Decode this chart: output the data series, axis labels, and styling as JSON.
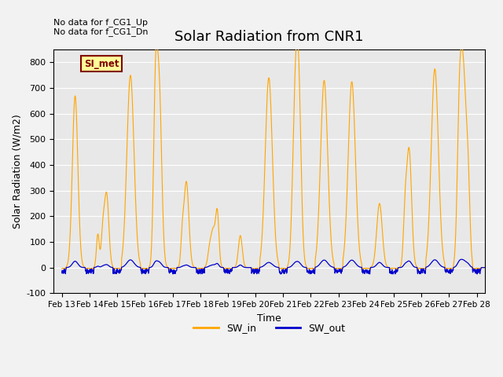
{
  "title": "Solar Radiation from CNR1",
  "xlabel": "Time",
  "ylabel": "Solar Radiation (W/m2)",
  "ylim": [
    -100,
    850
  ],
  "yticks": [
    -100,
    0,
    100,
    200,
    300,
    400,
    500,
    600,
    700,
    800
  ],
  "x_labels": [
    "Feb 13",
    "Feb 14",
    "Feb 15",
    "Feb 16",
    "Feb 17",
    "Feb 18",
    "Feb 19",
    "Feb 20",
    "Feb 21",
    "Feb 22",
    "Feb 23",
    "Feb 24",
    "Feb 25",
    "Feb 26",
    "Feb 27",
    "Feb 28"
  ],
  "sw_in_color": "#FFA500",
  "sw_out_color": "#0000CC",
  "annotation_text": "No data for f_CG1_Up\nNo data for f_CG1_Dn",
  "legend_label_color": "#800000",
  "legend_box_color": "#FFFF99",
  "legend_border_color": "#800000",
  "si_met_label": "SI_met",
  "fig_bg_color": "#f2f2f2",
  "plot_bg_color": "#e8e8e8"
}
